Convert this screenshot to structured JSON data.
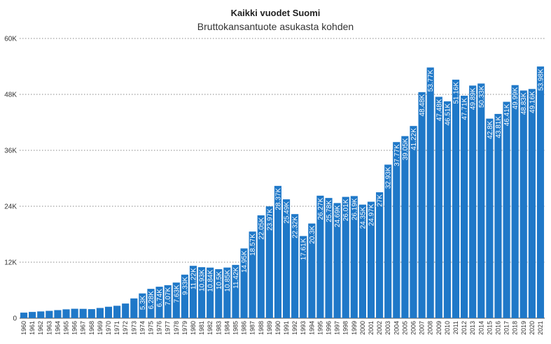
{
  "chart_data": {
    "type": "bar",
    "title": "Kaikki vuodet Suomi",
    "subtitle": "Bruttokansantuote asukasta kohden",
    "xlabel": "",
    "ylabel": "",
    "ylim": [
      0,
      60000
    ],
    "yticks": [
      0,
      12000,
      24000,
      36000,
      48000,
      60000
    ],
    "ytick_labels": [
      "0",
      "12K",
      "24K",
      "36K",
      "48K",
      "60K"
    ],
    "grid": true,
    "bar_color": "#1f78c8",
    "categories": [
      "1960",
      "1961",
      "1962",
      "1963",
      "1964",
      "1965",
      "1966",
      "1967",
      "1968",
      "1969",
      "1970",
      "1971",
      "1972",
      "1973",
      "1974",
      "1975",
      "1976",
      "1977",
      "1978",
      "1979",
      "1980",
      "1981",
      "1982",
      "1983",
      "1984",
      "1985",
      "1986",
      "1987",
      "1988",
      "1989",
      "1990",
      "1991",
      "1992",
      "1993",
      "1994",
      "1995",
      "1996",
      "1997",
      "1998",
      "1999",
      "2000",
      "2001",
      "2002",
      "2003",
      "2004",
      "2005",
      "2006",
      "2007",
      "2008",
      "2009",
      "2010",
      "2011",
      "2012",
      "2013",
      "2014",
      "2015",
      "2016",
      "2017",
      "2018",
      "2019",
      "2020",
      "2021"
    ],
    "values": [
      1180,
      1330,
      1440,
      1560,
      1720,
      1890,
      2010,
      1990,
      1930,
      2180,
      2440,
      2650,
      3130,
      4230,
      5300,
      6280,
      6740,
      7070,
      7630,
      9330,
      11220,
      10930,
      10840,
      10500,
      10850,
      11420,
      14950,
      18570,
      22050,
      23970,
      28370,
      25490,
      22320,
      17610,
      20300,
      26270,
      25780,
      24690,
      26010,
      26190,
      24350,
      24970,
      27000,
      32930,
      37770,
      39050,
      41220,
      48480,
      53770,
      47480,
      46510,
      51160,
      47710,
      49890,
      50330,
      42800,
      43810,
      46410,
      49990,
      48830,
      49160,
      53980
    ],
    "data_labels": [
      "",
      "",
      "",
      "",
      "",
      "",
      "",
      "",
      "",
      "",
      "",
      "",
      "",
      "",
      "5.3K",
      "6.28K",
      "6.74K",
      "7.07K",
      "7.63K",
      "9.33K",
      "11.22K",
      "10.93K",
      "10.84K",
      "10.5K",
      "10.85K",
      "11.42K",
      "14.95K",
      "18.57K",
      "22.05K",
      "23.97K",
      "28.37K",
      "25.49K",
      "22.32K",
      "17.61K",
      "20.3K",
      "26.27K",
      "25.78K",
      "24.69K",
      "26.01K",
      "26.19K",
      "24.35K",
      "24.97K",
      "27K",
      "32.93K",
      "37.77K",
      "39.05K",
      "41.22K",
      "48.48K",
      "53.77K",
      "47.48K",
      "46.51K",
      "51.16K",
      "47.71K",
      "49.89K",
      "50.33K",
      "42.8K",
      "43.81K",
      "46.41K",
      "49.99K",
      "48.83K",
      "49.16K",
      "53.98K"
    ]
  }
}
